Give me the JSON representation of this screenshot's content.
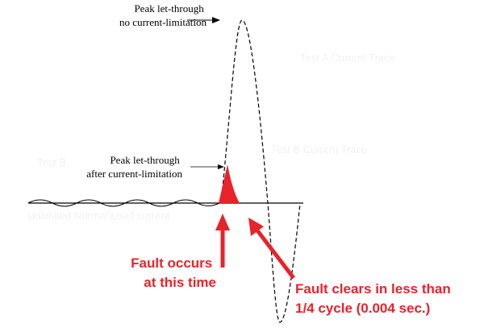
{
  "labels": {
    "peak_no_limit": [
      "Peak let-through",
      "no current-limitation"
    ],
    "peak_limit": [
      "Peak let-through",
      "after current-limitation"
    ],
    "test_a": "Test A Current Trace",
    "test_b": "Test B Current Trace",
    "test_b_left": "Test B",
    "normal_load": "Unlimited Normal Load current",
    "fault_occurs": [
      "Fault occurs",
      "at this time"
    ],
    "fault_clears": [
      "Fault clears in less than",
      "1/4 cycle (0.004 sec.)"
    ]
  }
}
